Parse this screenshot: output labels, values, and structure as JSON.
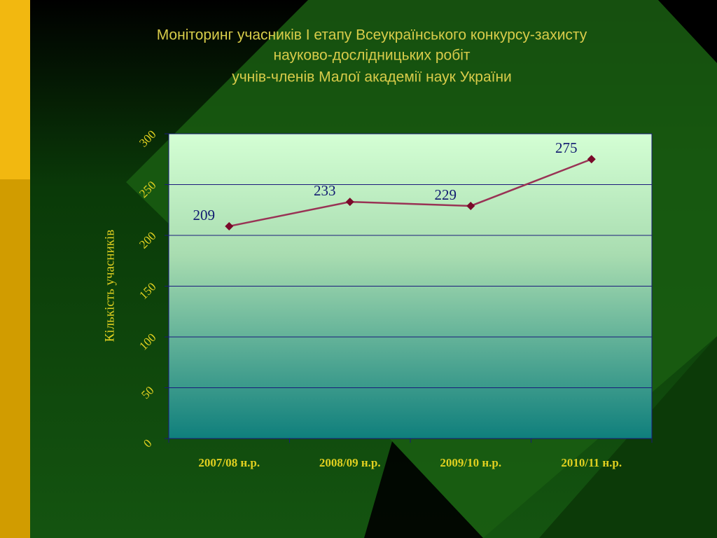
{
  "chart_data": {
    "type": "line",
    "title": [
      "Моніторинг  учасників І етапу Всеукраїнського конкурсу-захисту",
      "науково-дослідницьких робіт",
      "учнів-членів Малої академії наук України"
    ],
    "y_label": "Кількість учасників",
    "categories": [
      "2007/08 н.р.",
      "2008/09 н.р.",
      "2009/10 н.р.",
      "2010/11 н.р."
    ],
    "values": [
      209,
      233,
      229,
      275
    ],
    "color": "#993355",
    "marker_color": "#7a0a2a",
    "ylim": [
      0,
      300
    ],
    "yticks": [
      0,
      50,
      100,
      150,
      200,
      250,
      300
    ],
    "grid": true
  }
}
